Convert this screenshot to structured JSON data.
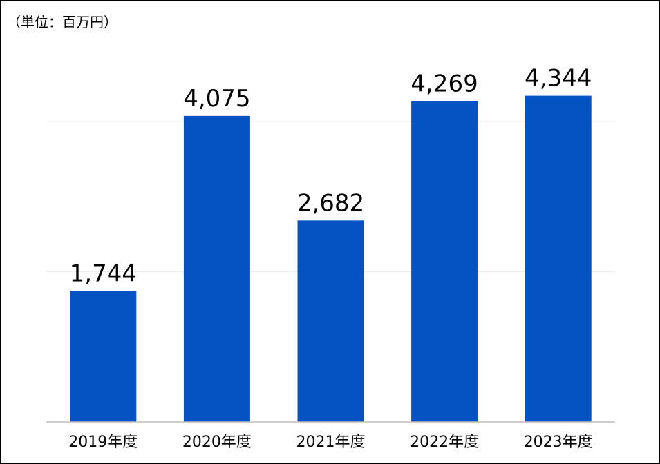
{
  "unit_label": "（単位：百万円）",
  "chart_data": {
    "type": "bar",
    "categories": [
      "2019年度",
      "2020年度",
      "2021年度",
      "2022年度",
      "2023年度"
    ],
    "values": [
      1744,
      4075,
      2682,
      4269,
      4344
    ],
    "value_labels": [
      "1,744",
      "4,075",
      "2,682",
      "4,269",
      "4,344"
    ],
    "title": "",
    "xlabel": "",
    "ylabel": "",
    "ylim": [
      0,
      5000
    ],
    "gridlines": [
      2000,
      4000
    ],
    "bar_color": "#0553C2",
    "grid": true,
    "legend": "none"
  }
}
